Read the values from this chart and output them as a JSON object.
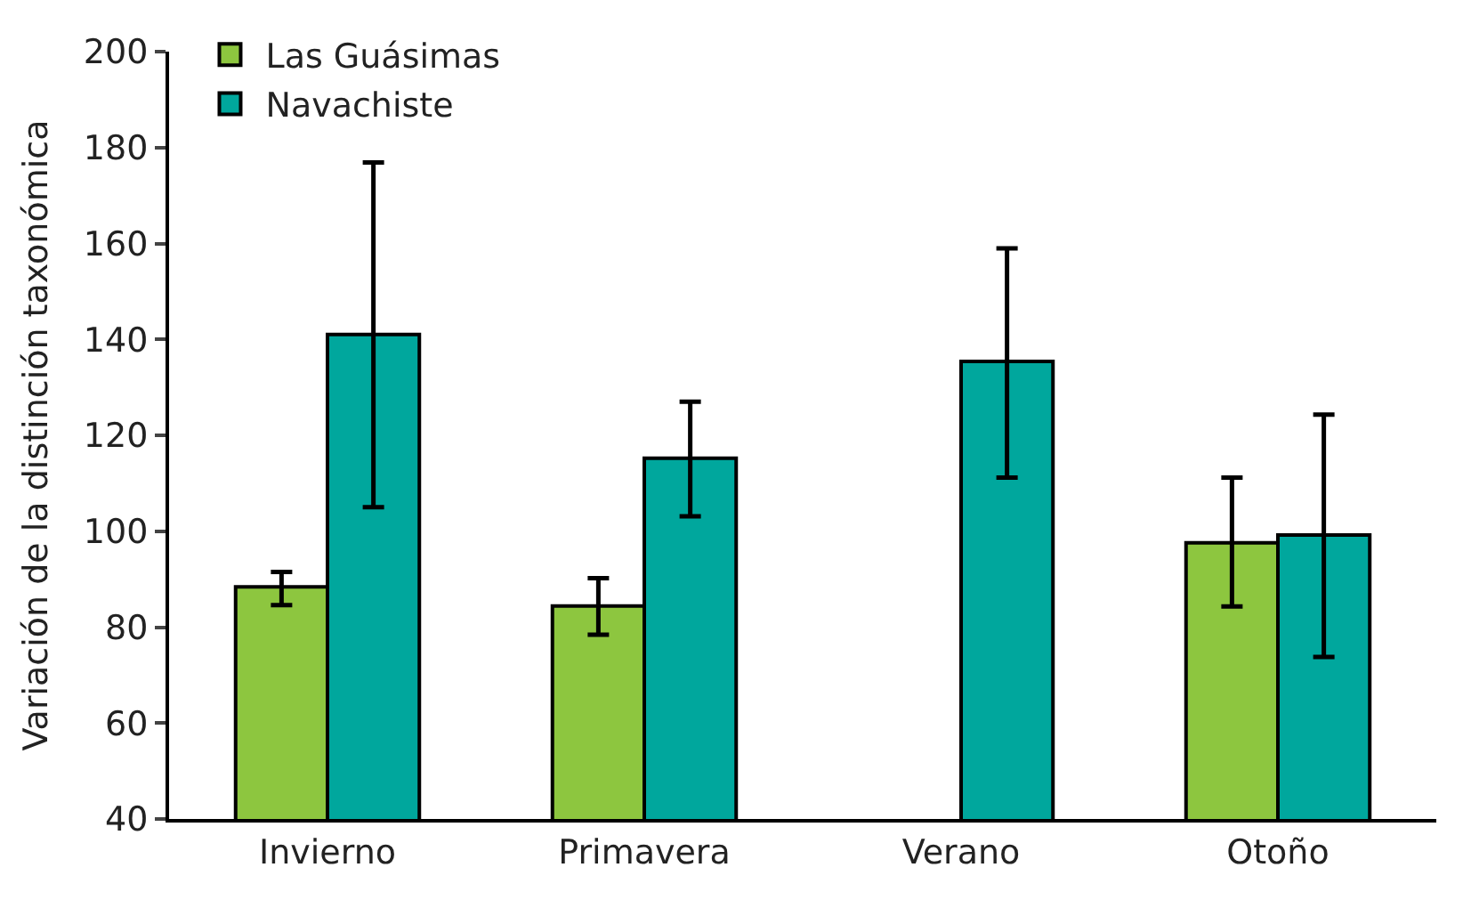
{
  "chart_data": {
    "type": "bar",
    "ylabel": "Variación de la distinción taxonómica",
    "categories": [
      "Invierno",
      "Primavera",
      "Verano",
      "Otoño"
    ],
    "series": [
      {
        "name": "Las Guásimas",
        "color": "#8dc63f",
        "values": [
          88.4,
          84.4,
          null,
          97.6
        ],
        "errors": [
          [
            84.6,
            91.5
          ],
          [
            78.4,
            90.2
          ],
          null,
          [
            84.3,
            111.2
          ]
        ]
      },
      {
        "name": "Navachiste",
        "color": "#00a79d",
        "values": [
          141,
          115.2,
          135.4,
          99.2
        ],
        "errors": [
          [
            105,
            176.9
          ],
          [
            103.1,
            127
          ],
          [
            111.2,
            159
          ],
          [
            73.8,
            124.3
          ]
        ]
      }
    ],
    "ylim": [
      40,
      200
    ],
    "yticks": [
      40,
      60,
      80,
      100,
      120,
      140,
      160,
      180,
      200
    ],
    "legend": "top left"
  }
}
